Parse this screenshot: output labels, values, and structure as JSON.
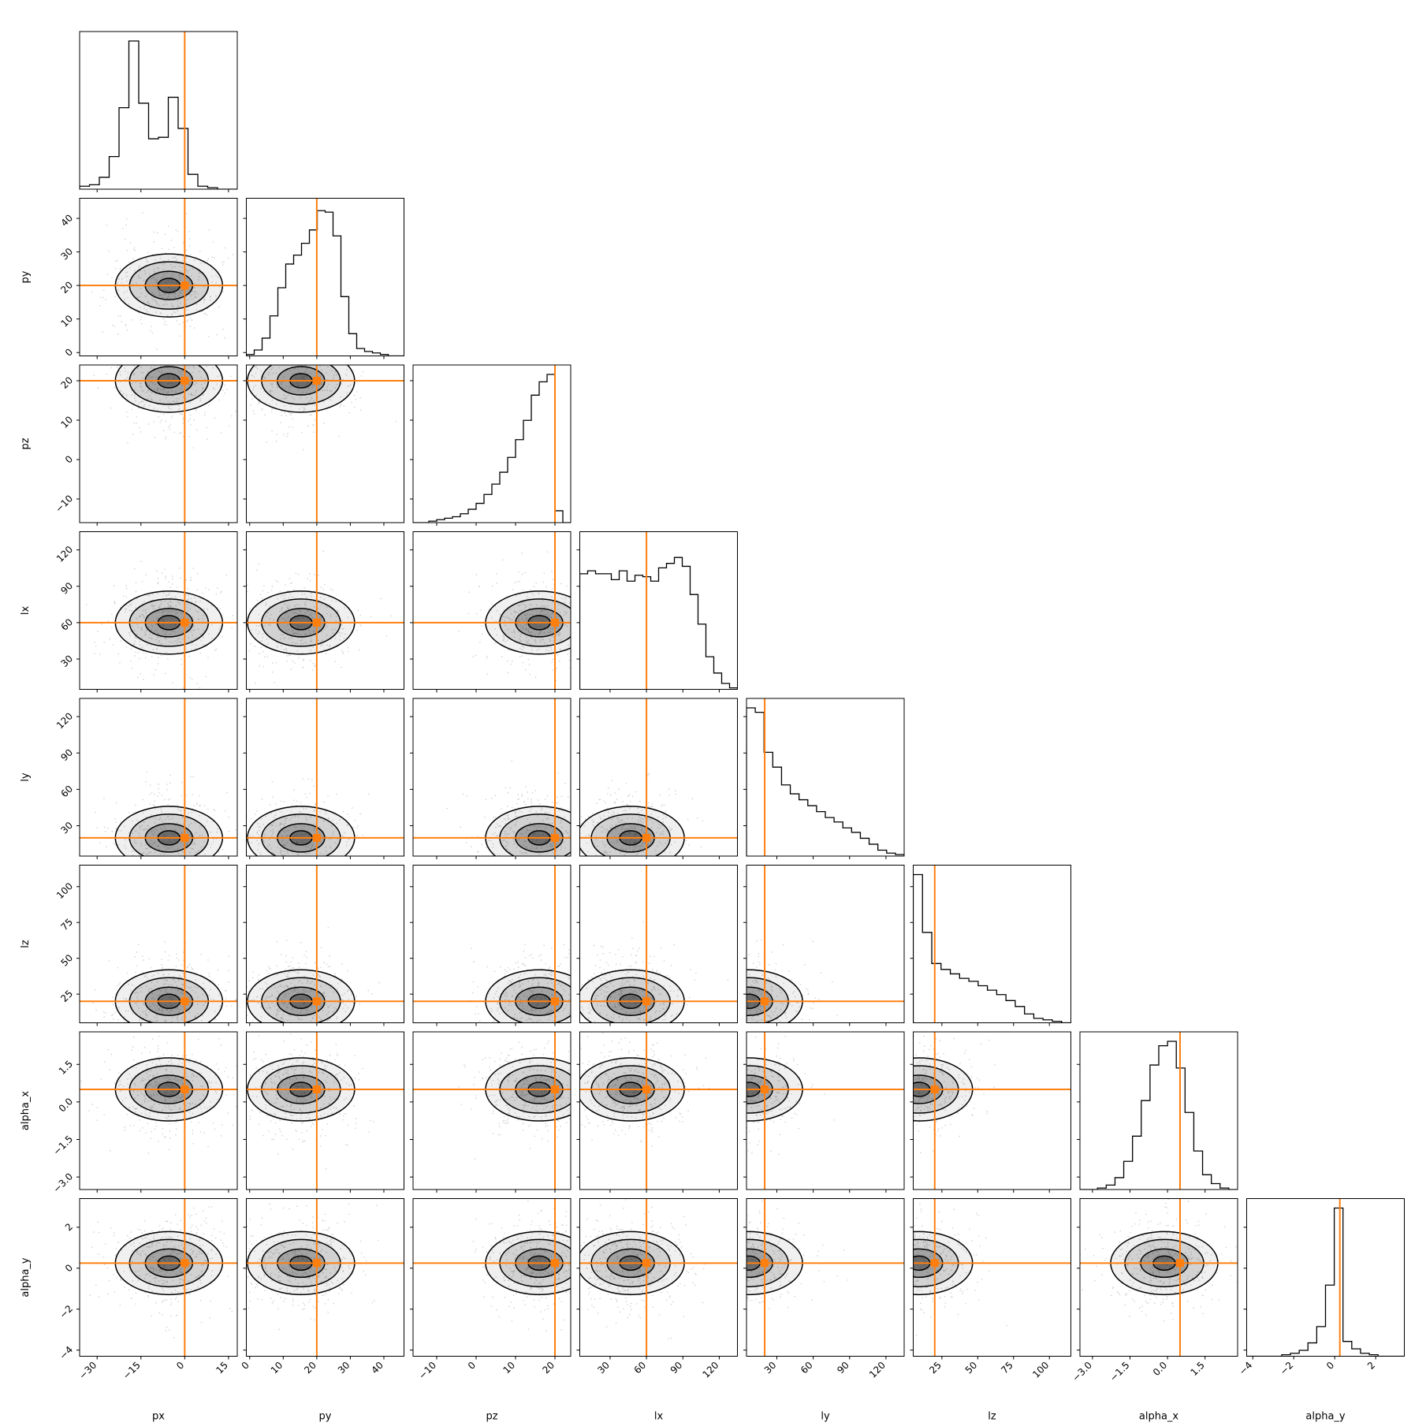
{
  "chart_data": {
    "type": "corner",
    "parameters": [
      "px",
      "py",
      "pz",
      "lx",
      "ly",
      "lz",
      "alpha_x",
      "alpha_y"
    ],
    "truths": [
      0,
      20,
      20,
      60,
      20,
      20,
      0.5,
      0.25
    ],
    "ranges": [
      [
        -36,
        18
      ],
      [
        -1,
        46
      ],
      [
        -16,
        24
      ],
      [
        5,
        135
      ],
      [
        5,
        135
      ],
      [
        5,
        115
      ],
      [
        -3.5,
        2.8
      ],
      [
        -4.3,
        3.4
      ]
    ],
    "ticks": [
      {
        "values": [
          -30,
          -15,
          0,
          15
        ],
        "labels": [
          "−30",
          "−15",
          "0",
          "15"
        ]
      },
      {
        "values": [
          0,
          10,
          20,
          30,
          40
        ],
        "labels": [
          "0",
          "10",
          "20",
          "30",
          "40"
        ]
      },
      {
        "values": [
          -10,
          0,
          10,
          20
        ],
        "labels": [
          "−10",
          "0",
          "10",
          "20"
        ]
      },
      {
        "values": [
          30,
          60,
          90,
          120
        ],
        "labels": [
          "30",
          "60",
          "90",
          "120"
        ]
      },
      {
        "values": [
          30,
          60,
          90,
          120
        ],
        "labels": [
          "30",
          "60",
          "90",
          "120"
        ]
      },
      {
        "values": [
          25,
          50,
          75,
          100
        ],
        "labels": [
          "25",
          "50",
          "75",
          "100"
        ]
      },
      {
        "values": [
          -3.0,
          -1.5,
          0.0,
          1.5
        ],
        "labels": [
          "−3.0",
          "−1.5",
          "0.0",
          "1.5"
        ]
      },
      {
        "values": [
          -4,
          -2,
          0,
          2
        ],
        "labels": [
          "−4",
          "−2",
          "0",
          "2"
        ]
      }
    ],
    "histograms": [
      [
        0.02,
        0.03,
        0.08,
        0.22,
        0.55,
        1.0,
        0.58,
        0.34,
        0.35,
        0.62,
        0.41,
        0.1,
        0.02,
        0.01,
        0.0,
        0.0
      ],
      [
        0.01,
        0.04,
        0.12,
        0.27,
        0.46,
        0.62,
        0.68,
        0.76,
        0.85,
        0.98,
        0.97,
        0.81,
        0.4,
        0.15,
        0.05,
        0.03,
        0.02,
        0.01,
        0.0,
        0.0
      ],
      [
        0.0,
        0.0,
        0.01,
        0.02,
        0.03,
        0.04,
        0.06,
        0.09,
        0.13,
        0.19,
        0.26,
        0.34,
        0.44,
        0.56,
        0.69,
        0.86,
        0.95,
        1.0,
        0.08,
        0.0
      ],
      [
        0.78,
        0.8,
        0.78,
        0.78,
        0.74,
        0.8,
        0.73,
        0.77,
        0.76,
        0.73,
        0.82,
        0.85,
        0.89,
        0.83,
        0.64,
        0.44,
        0.22,
        0.11,
        0.04,
        0.01
      ],
      [
        1.0,
        0.97,
        0.7,
        0.6,
        0.48,
        0.42,
        0.38,
        0.34,
        0.3,
        0.26,
        0.23,
        0.19,
        0.16,
        0.12,
        0.08,
        0.04,
        0.02,
        0.01
      ],
      [
        1.0,
        0.61,
        0.4,
        0.36,
        0.33,
        0.3,
        0.28,
        0.25,
        0.22,
        0.19,
        0.15,
        0.11,
        0.06,
        0.03,
        0.02,
        0.01,
        0.0
      ],
      [
        0.0,
        0.0,
        0.01,
        0.03,
        0.08,
        0.19,
        0.36,
        0.6,
        0.84,
        0.97,
        1.0,
        0.82,
        0.52,
        0.26,
        0.1,
        0.04,
        0.01,
        0.0
      ],
      [
        0.0,
        0.0,
        0.0,
        0.0,
        0.01,
        0.02,
        0.04,
        0.09,
        0.2,
        0.48,
        1.0,
        0.1,
        0.05,
        0.02,
        0.01,
        0.0,
        0.0,
        0.0
      ]
    ]
  },
  "colors": {
    "truth": "#ff7f0e",
    "line": "#000000",
    "points": "#7f7f7f",
    "background": "#ffffff"
  }
}
